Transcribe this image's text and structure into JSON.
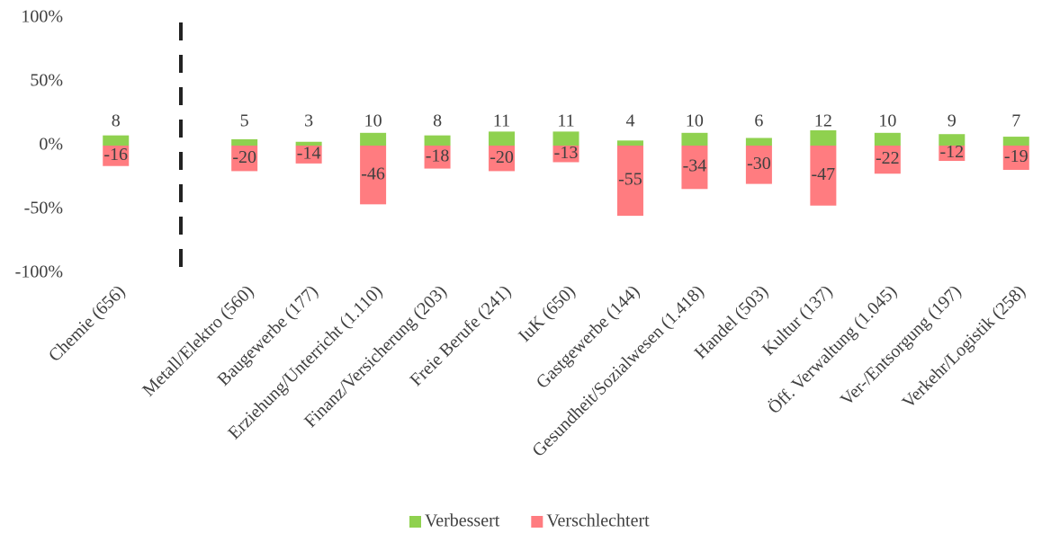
{
  "chart_data": {
    "type": "bar",
    "categories": [
      "Chemie (656)",
      null,
      "Metall/Elektro (560)",
      "Baugewerbe (177)",
      "Erziehung/Unterricht (1.110)",
      "Finanz/Versicherung (203)",
      "Freie Berufe (241)",
      "IuK (650)",
      "Gastgewerbe (144)",
      "Gesundheit/Sozialwesen (1.418)",
      "Handel (503)",
      "Kultur (137)",
      "Öff. Verwaltung (1.045)",
      "Ver-/Entsorgung (197)",
      "Verkehr/Logistik (258)"
    ],
    "series": [
      {
        "name": "Verbessert",
        "color": "#8fd14f",
        "values": [
          8,
          null,
          5,
          3,
          10,
          8,
          11,
          11,
          4,
          10,
          6,
          12,
          10,
          9,
          7
        ]
      },
      {
        "name": "Verschlechtert",
        "color": "#ff7c80",
        "values": [
          -16,
          null,
          -20,
          -14,
          -46,
          -18,
          -20,
          -13,
          -55,
          -34,
          -30,
          -47,
          -22,
          -12,
          -19
        ]
      }
    ],
    "ylim": [
      -100,
      100
    ],
    "yticks": [
      {
        "value": -100,
        "label": "-100%"
      },
      {
        "value": -50,
        "label": "-50%"
      },
      {
        "value": 0,
        "label": "0%"
      },
      {
        "value": 50,
        "label": "50%"
      },
      {
        "value": 100,
        "label": "100%"
      }
    ],
    "grid": false,
    "legend": "bottom"
  }
}
